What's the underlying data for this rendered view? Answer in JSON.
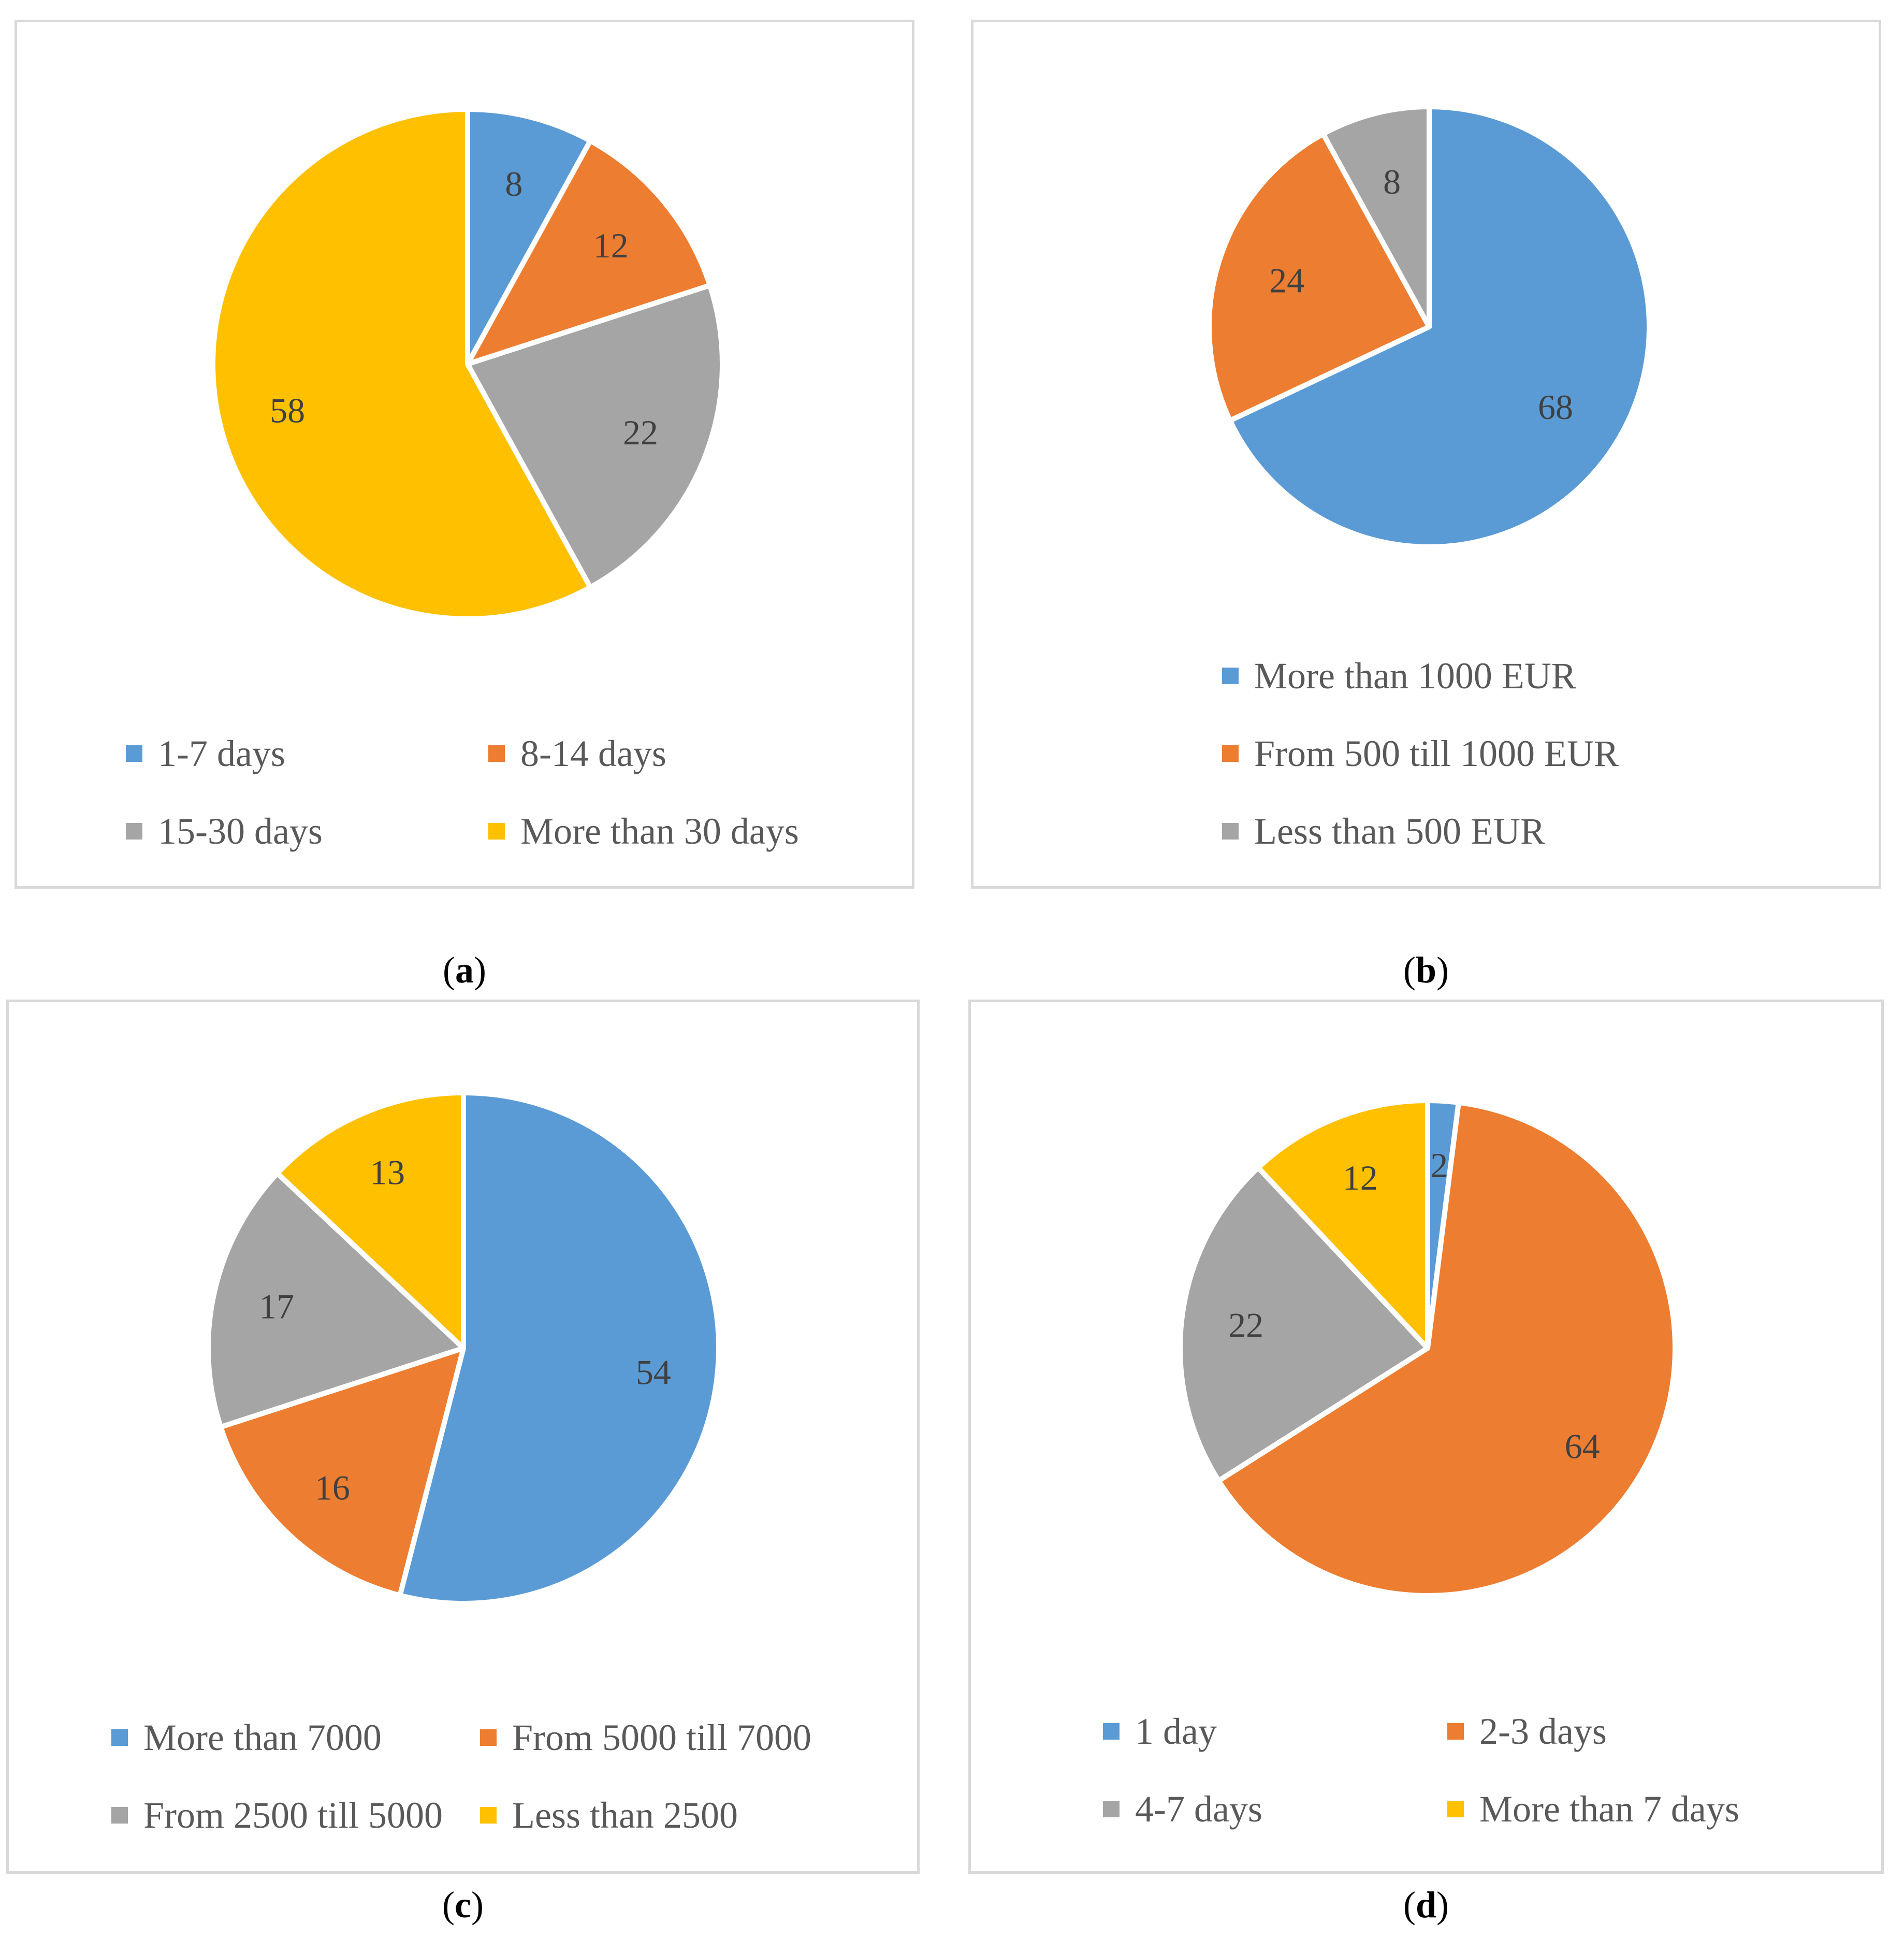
{
  "chart_data": [
    {
      "type": "pie",
      "panel": "a",
      "caption": "a",
      "categories": [
        "1-7 days",
        "8-14 days",
        "15-30 days",
        "More than 30 days"
      ],
      "values": [
        8,
        12,
        22,
        58
      ],
      "labels": [
        "8",
        "12",
        "22",
        "58"
      ],
      "colors": [
        "#5b9bd5",
        "#ed7d31",
        "#a5a5a5",
        "#ffc000"
      ],
      "legend_position": "bottom",
      "legend_columns": 2
    },
    {
      "type": "pie",
      "panel": "b",
      "caption": "b",
      "categories": [
        "More than 1000 EUR",
        "From 500 till 1000 EUR",
        "Less than 500 EUR"
      ],
      "values": [
        68,
        24,
        8
      ],
      "labels": [
        "68",
        "24",
        "8"
      ],
      "colors": [
        "#5b9bd5",
        "#ed7d31",
        "#a5a5a5"
      ],
      "legend_position": "bottom",
      "legend_columns": 1
    },
    {
      "type": "pie",
      "panel": "c",
      "caption": "c",
      "categories": [
        "More than 7000",
        "From 5000 till 7000",
        "From 2500 till 5000",
        "Less than 2500"
      ],
      "values": [
        54,
        16,
        17,
        13
      ],
      "labels": [
        "54",
        "16",
        "17",
        "13"
      ],
      "colors": [
        "#5b9bd5",
        "#ed7d31",
        "#a5a5a5",
        "#ffc000"
      ],
      "legend_position": "bottom",
      "legend_columns": 2
    },
    {
      "type": "pie",
      "panel": "d",
      "caption": "d",
      "categories": [
        "1 day",
        "2-3 days",
        "4-7 days",
        "More than 7 days"
      ],
      "values": [
        2,
        64,
        22,
        12
      ],
      "labels": [
        "2",
        "64",
        "22",
        "12"
      ],
      "colors": [
        "#5b9bd5",
        "#ed7d31",
        "#a5a5a5",
        "#ffc000"
      ],
      "legend_position": "bottom",
      "legend_columns": 2
    }
  ]
}
